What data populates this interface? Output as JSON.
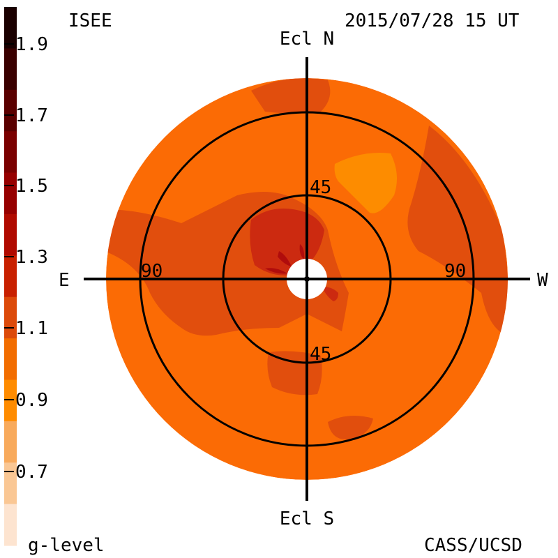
{
  "header": {
    "left_label": "ISEE",
    "timestamp": "2015/07/28 15 UT"
  },
  "footer": {
    "left_label": "g-level",
    "right_label": "CASS/UCSD"
  },
  "directions": {
    "north": "Ecl N",
    "south": "Ecl S",
    "east": "E",
    "west": "W"
  },
  "ring_labels": {
    "inner_top": "45",
    "inner_bottom": "45",
    "outer_left": "90",
    "outer_right": "90"
  },
  "colorbar": {
    "title": "g-level",
    "tick_labels": [
      "1.9",
      "1.7",
      "1.5",
      "1.3",
      "1.1",
      "0.9",
      "0.7"
    ],
    "bands": [
      "#1a0000",
      "#3a0000",
      "#5a0000",
      "#7a0000",
      "#960000",
      "#b00a00",
      "#c82000",
      "#dc4a0a",
      "#f26d00",
      "#ff8c00",
      "#f8aa5c",
      "#fac794",
      "#fde4d0"
    ]
  },
  "map_colors": {
    "base": "#fb6b05",
    "level_1_0": "#e14e0d",
    "level_1_2": "#cc2a10",
    "level_1_4": "#b00c0c",
    "level_0_85": "#fd8c00",
    "axis": "#000000"
  }
}
